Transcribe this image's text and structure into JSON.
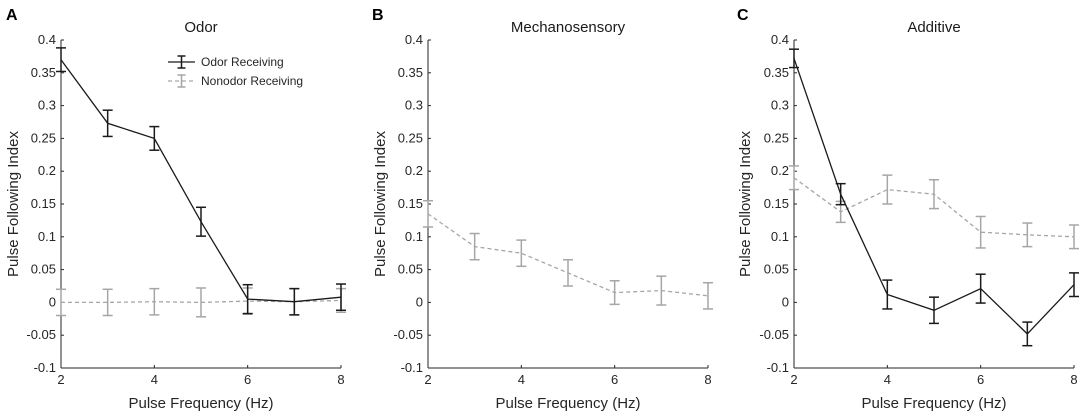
{
  "figure": {
    "shared_xlabel": "Pulse Frequency (Hz)",
    "shared_ylabel": "Pulse Following Index"
  },
  "legend": {
    "entries": [
      {
        "label": "Odor Receiving",
        "color": "#1a1a1a",
        "dashed": false
      },
      {
        "label": "Nonodor Receiving",
        "color": "#a6a6a6",
        "dashed": true
      }
    ]
  },
  "chart_data": [
    {
      "type": "line",
      "panel_label": "A",
      "title": "Odor",
      "xlabel": "Pulse Frequency (Hz)",
      "ylabel": "Pulse Following Index",
      "xlim": [
        2,
        8
      ],
      "ylim": [
        -0.1,
        0.4
      ],
      "xticks": [
        2,
        4,
        6,
        8
      ],
      "yticks": [
        -0.1,
        -0.05,
        0,
        0.05,
        0.1,
        0.15,
        0.2,
        0.25,
        0.3,
        0.35,
        0.4
      ],
      "ytick_labels": [
        "-0.1",
        "-0.05",
        "0",
        "0.05",
        "0.1",
        "0.15",
        "0.2",
        "0.25",
        "0.3",
        "0.35",
        "0.4"
      ],
      "legend_position": "top-right",
      "series": [
        {
          "name": "Odor Receiving",
          "color": "#1a1a1a",
          "dashed": false,
          "x": [
            2,
            3,
            4,
            5,
            6,
            7,
            8
          ],
          "y": [
            0.37,
            0.273,
            0.25,
            0.123,
            0.005,
            0.001,
            0.008
          ],
          "err": [
            0.018,
            0.02,
            0.018,
            0.022,
            0.022,
            0.02,
            0.02
          ]
        },
        {
          "name": "Nonodor Receiving",
          "color": "#a6a6a6",
          "dashed": true,
          "x": [
            2,
            3,
            4,
            5,
            6,
            7,
            8
          ],
          "y": [
            0.0,
            0.0,
            0.001,
            0.0,
            0.002,
            0.001,
            0.003
          ],
          "err": [
            0.02,
            0.02,
            0.02,
            0.022,
            0.02,
            0.02,
            0.018
          ]
        }
      ]
    },
    {
      "type": "line",
      "panel_label": "B",
      "title": "Mechanosensory",
      "xlabel": "Pulse Frequency (Hz)",
      "ylabel": "Pulse Following Index",
      "xlim": [
        2,
        8
      ],
      "ylim": [
        -0.1,
        0.4
      ],
      "xticks": [
        2,
        4,
        6,
        8
      ],
      "yticks": [
        -0.1,
        -0.05,
        0,
        0.05,
        0.1,
        0.15,
        0.2,
        0.25,
        0.3,
        0.35,
        0.4
      ],
      "ytick_labels": [
        "-0.1",
        "-0.05",
        "0",
        "0.05",
        "0.1",
        "0.15",
        "0.2",
        "0.25",
        "0.3",
        "0.35",
        "0.4"
      ],
      "series": [
        {
          "name": "Nonodor Receiving",
          "color": "#a6a6a6",
          "dashed": true,
          "x": [
            2,
            3,
            4,
            5,
            6,
            7,
            8
          ],
          "y": [
            0.135,
            0.085,
            0.075,
            0.045,
            0.015,
            0.018,
            0.01
          ],
          "err": [
            0.02,
            0.02,
            0.02,
            0.02,
            0.018,
            0.022,
            0.02
          ]
        }
      ]
    },
    {
      "type": "line",
      "panel_label": "C",
      "title": "Additive",
      "xlabel": "Pulse Frequency (Hz)",
      "ylabel": "Pulse Following Index",
      "xlim": [
        2,
        8
      ],
      "ylim": [
        -0.1,
        0.4
      ],
      "xticks": [
        2,
        4,
        6,
        8
      ],
      "yticks": [
        -0.1,
        -0.05,
        0,
        0.05,
        0.1,
        0.15,
        0.2,
        0.25,
        0.3,
        0.35,
        0.4
      ],
      "ytick_labels": [
        "-0.1",
        "-0.05",
        "0",
        "0.05",
        "0.1",
        "0.15",
        "0.2",
        "0.25",
        "0.3",
        "0.35",
        "0.4"
      ],
      "series": [
        {
          "name": "Odor Receiving",
          "color": "#1a1a1a",
          "dashed": false,
          "x": [
            2,
            3,
            4,
            5,
            6,
            7,
            8
          ],
          "y": [
            0.372,
            0.165,
            0.012,
            -0.012,
            0.021,
            -0.048,
            0.027
          ],
          "err": [
            0.014,
            0.016,
            0.022,
            0.02,
            0.022,
            0.018,
            0.018
          ]
        },
        {
          "name": "Nonodor Receiving",
          "color": "#a6a6a6",
          "dashed": true,
          "x": [
            2,
            3,
            4,
            5,
            6,
            7,
            8
          ],
          "y": [
            0.19,
            0.138,
            0.172,
            0.165,
            0.107,
            0.103,
            0.1
          ],
          "err": [
            0.018,
            0.016,
            0.022,
            0.022,
            0.024,
            0.018,
            0.018
          ]
        }
      ]
    }
  ]
}
